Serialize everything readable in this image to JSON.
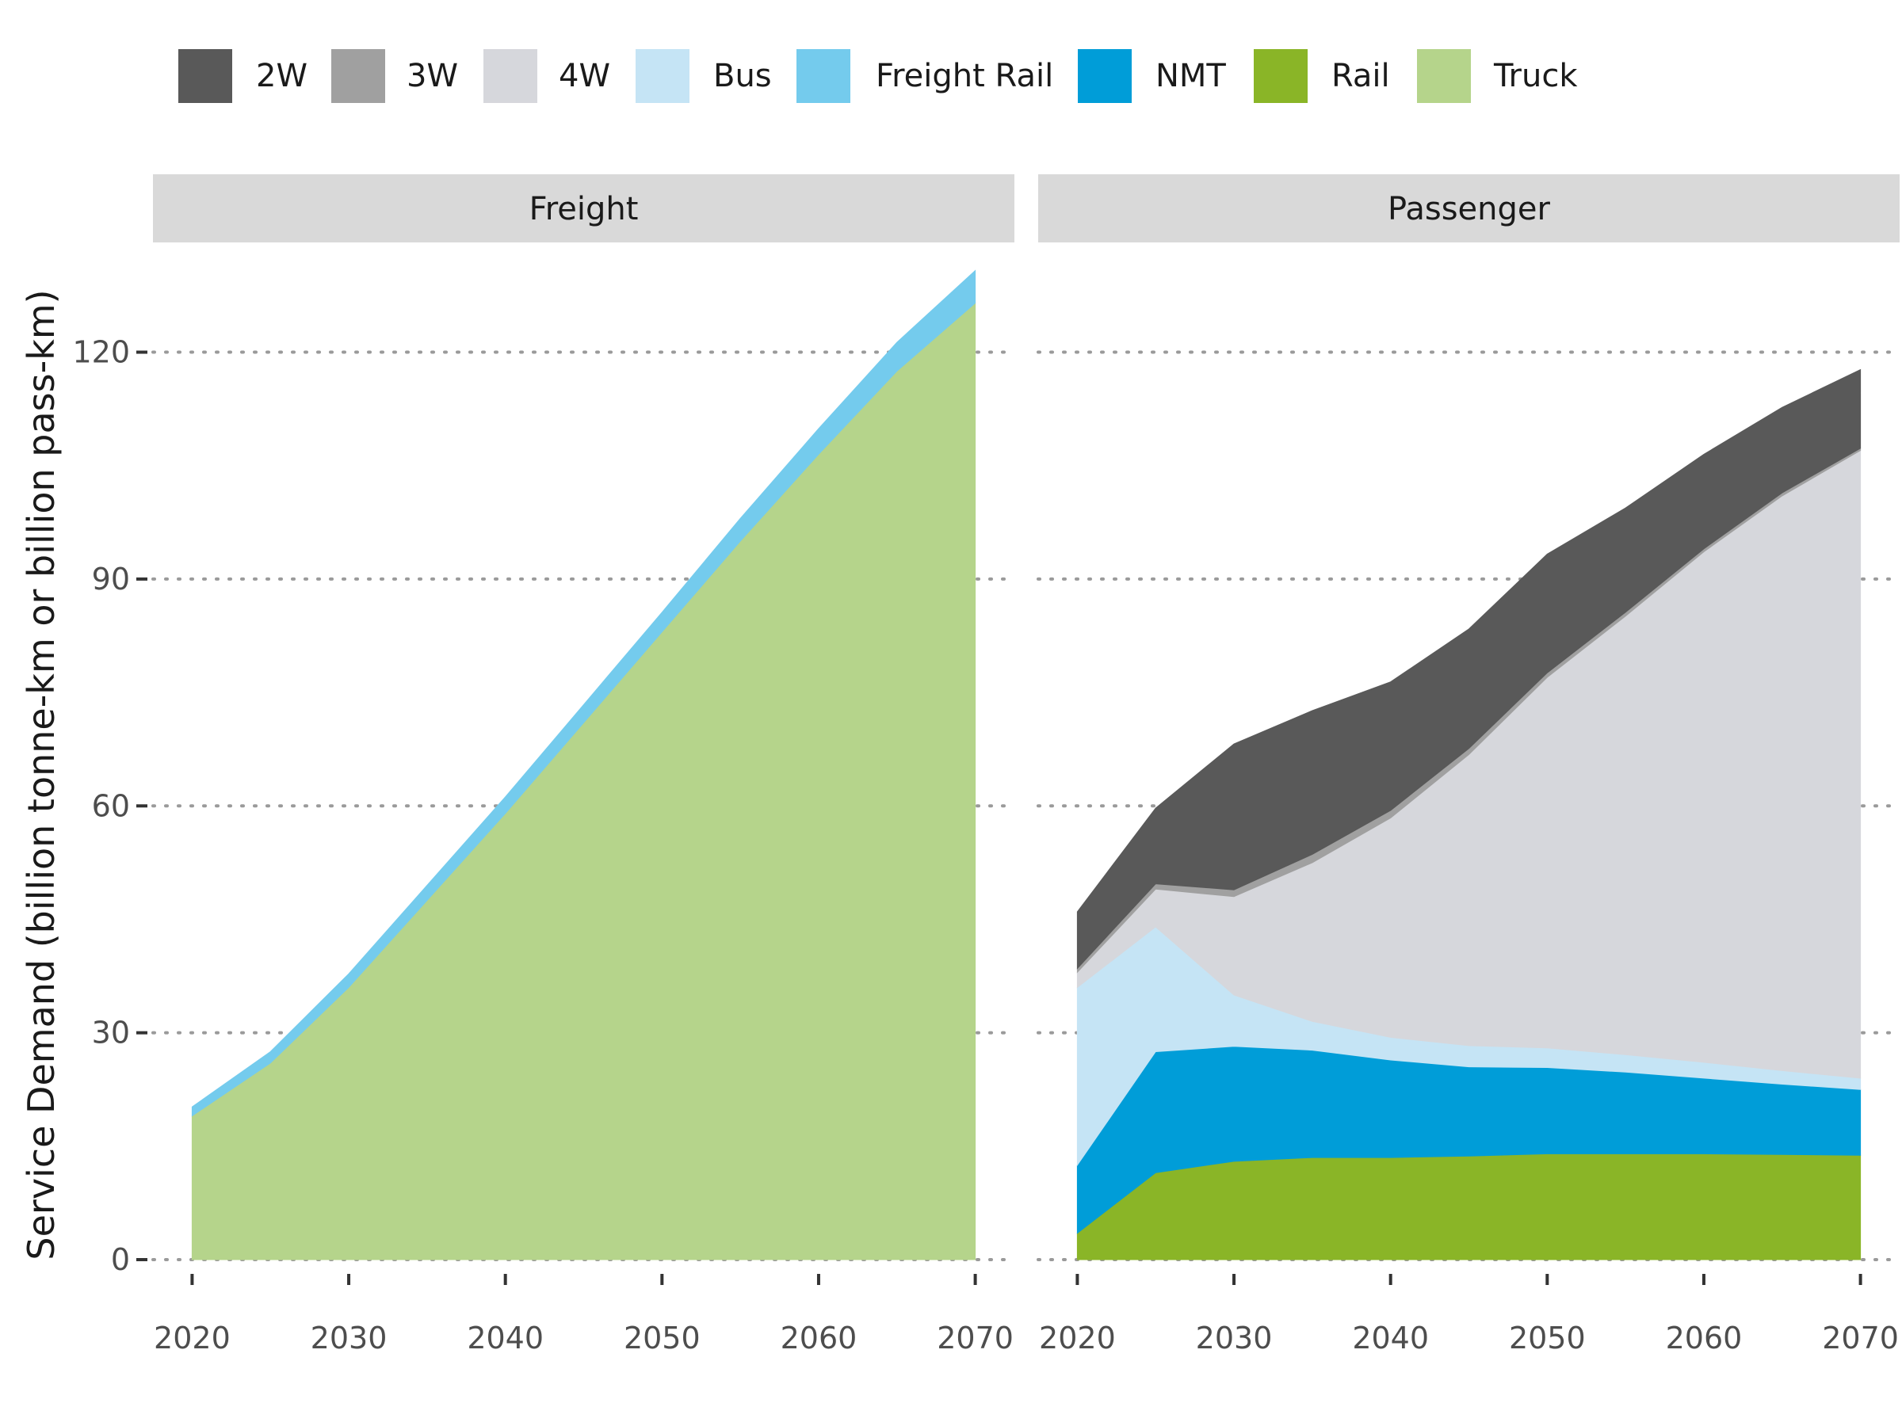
{
  "chart_data": {
    "type": "area",
    "ylabel": "Service Demand (billion tonne-km or billion pass-km)",
    "y_ticks": [
      0,
      30,
      60,
      90,
      120
    ],
    "x_ticks": [
      2020,
      2030,
      2040,
      2050,
      2060,
      2070
    ],
    "xlim": [
      2017.5,
      2072.5
    ],
    "ylim": [
      0,
      132
    ],
    "grid": "horizontal dotted",
    "legend_position": "top",
    "legend": [
      {
        "name": "2W",
        "color": "#595959"
      },
      {
        "name": "3W",
        "color": "#a0a0a0"
      },
      {
        "name": "4W",
        "color": "#d6d7dc"
      },
      {
        "name": "Bus",
        "color": "#c5e4f5"
      },
      {
        "name": "Freight Rail",
        "color": "#74cbed"
      },
      {
        "name": "NMT",
        "color": "#009dd8"
      },
      {
        "name": "Rail",
        "color": "#8ab527"
      },
      {
        "name": "Truck",
        "color": "#b5d48b"
      }
    ],
    "panels": [
      {
        "strip": "Freight",
        "x": [
          2020,
          2025,
          2030,
          2035,
          2040,
          2045,
          2050,
          2055,
          2060,
          2065,
          2070
        ],
        "stack_order_bottom_to_top": [
          "Truck",
          "Freight Rail"
        ],
        "series": [
          {
            "name": "Truck",
            "values": [
              19,
              26,
              36,
              47.5,
              59,
              71,
              83,
              95,
              106.5,
              117.5,
              126.5
            ]
          },
          {
            "name": "Freight Rail",
            "values": [
              1.2,
              1.5,
              1.8,
              2.0,
              2.2,
              2.4,
              2.6,
              3.0,
              3.4,
              3.8,
              4.3
            ]
          }
        ]
      },
      {
        "strip": "Passenger",
        "x": [
          2020,
          2025,
          2030,
          2035,
          2040,
          2045,
          2050,
          2055,
          2060,
          2065,
          2070
        ],
        "stack_order_bottom_to_top": [
          "Rail",
          "NMT",
          "Bus",
          "4W",
          "3W",
          "2W"
        ],
        "series": [
          {
            "name": "Rail",
            "values": [
              3.5,
              11.5,
              13.0,
              13.5,
              13.5,
              13.7,
              14.0,
              14.0,
              14.0,
              13.9,
              13.8
            ]
          },
          {
            "name": "NMT",
            "values": [
              9.0,
              16.0,
              15.2,
              14.2,
              12.9,
              11.8,
              11.4,
              10.8,
              10.0,
              9.3,
              8.7
            ]
          },
          {
            "name": "Bus",
            "values": [
              23.5,
              16.5,
              6.8,
              3.8,
              3.0,
              2.8,
              2.6,
              2.3,
              2.1,
              1.8,
              1.5
            ]
          },
          {
            "name": "4W",
            "values": [
              2.0,
              5.0,
              13.0,
              21.0,
              29.0,
              38.5,
              49.0,
              58.0,
              67.5,
              76.0,
              83.0
            ]
          },
          {
            "name": "3W",
            "values": [
              0.5,
              0.7,
              0.9,
              1.1,
              1.0,
              0.8,
              0.6,
              0.5,
              0.4,
              0.4,
              0.3
            ]
          },
          {
            "name": "2W",
            "values": [
              7.5,
              10.0,
              19.3,
              19.0,
              17.0,
              15.8,
              15.7,
              13.8,
              12.5,
              11.3,
              10.4
            ]
          }
        ]
      }
    ]
  }
}
